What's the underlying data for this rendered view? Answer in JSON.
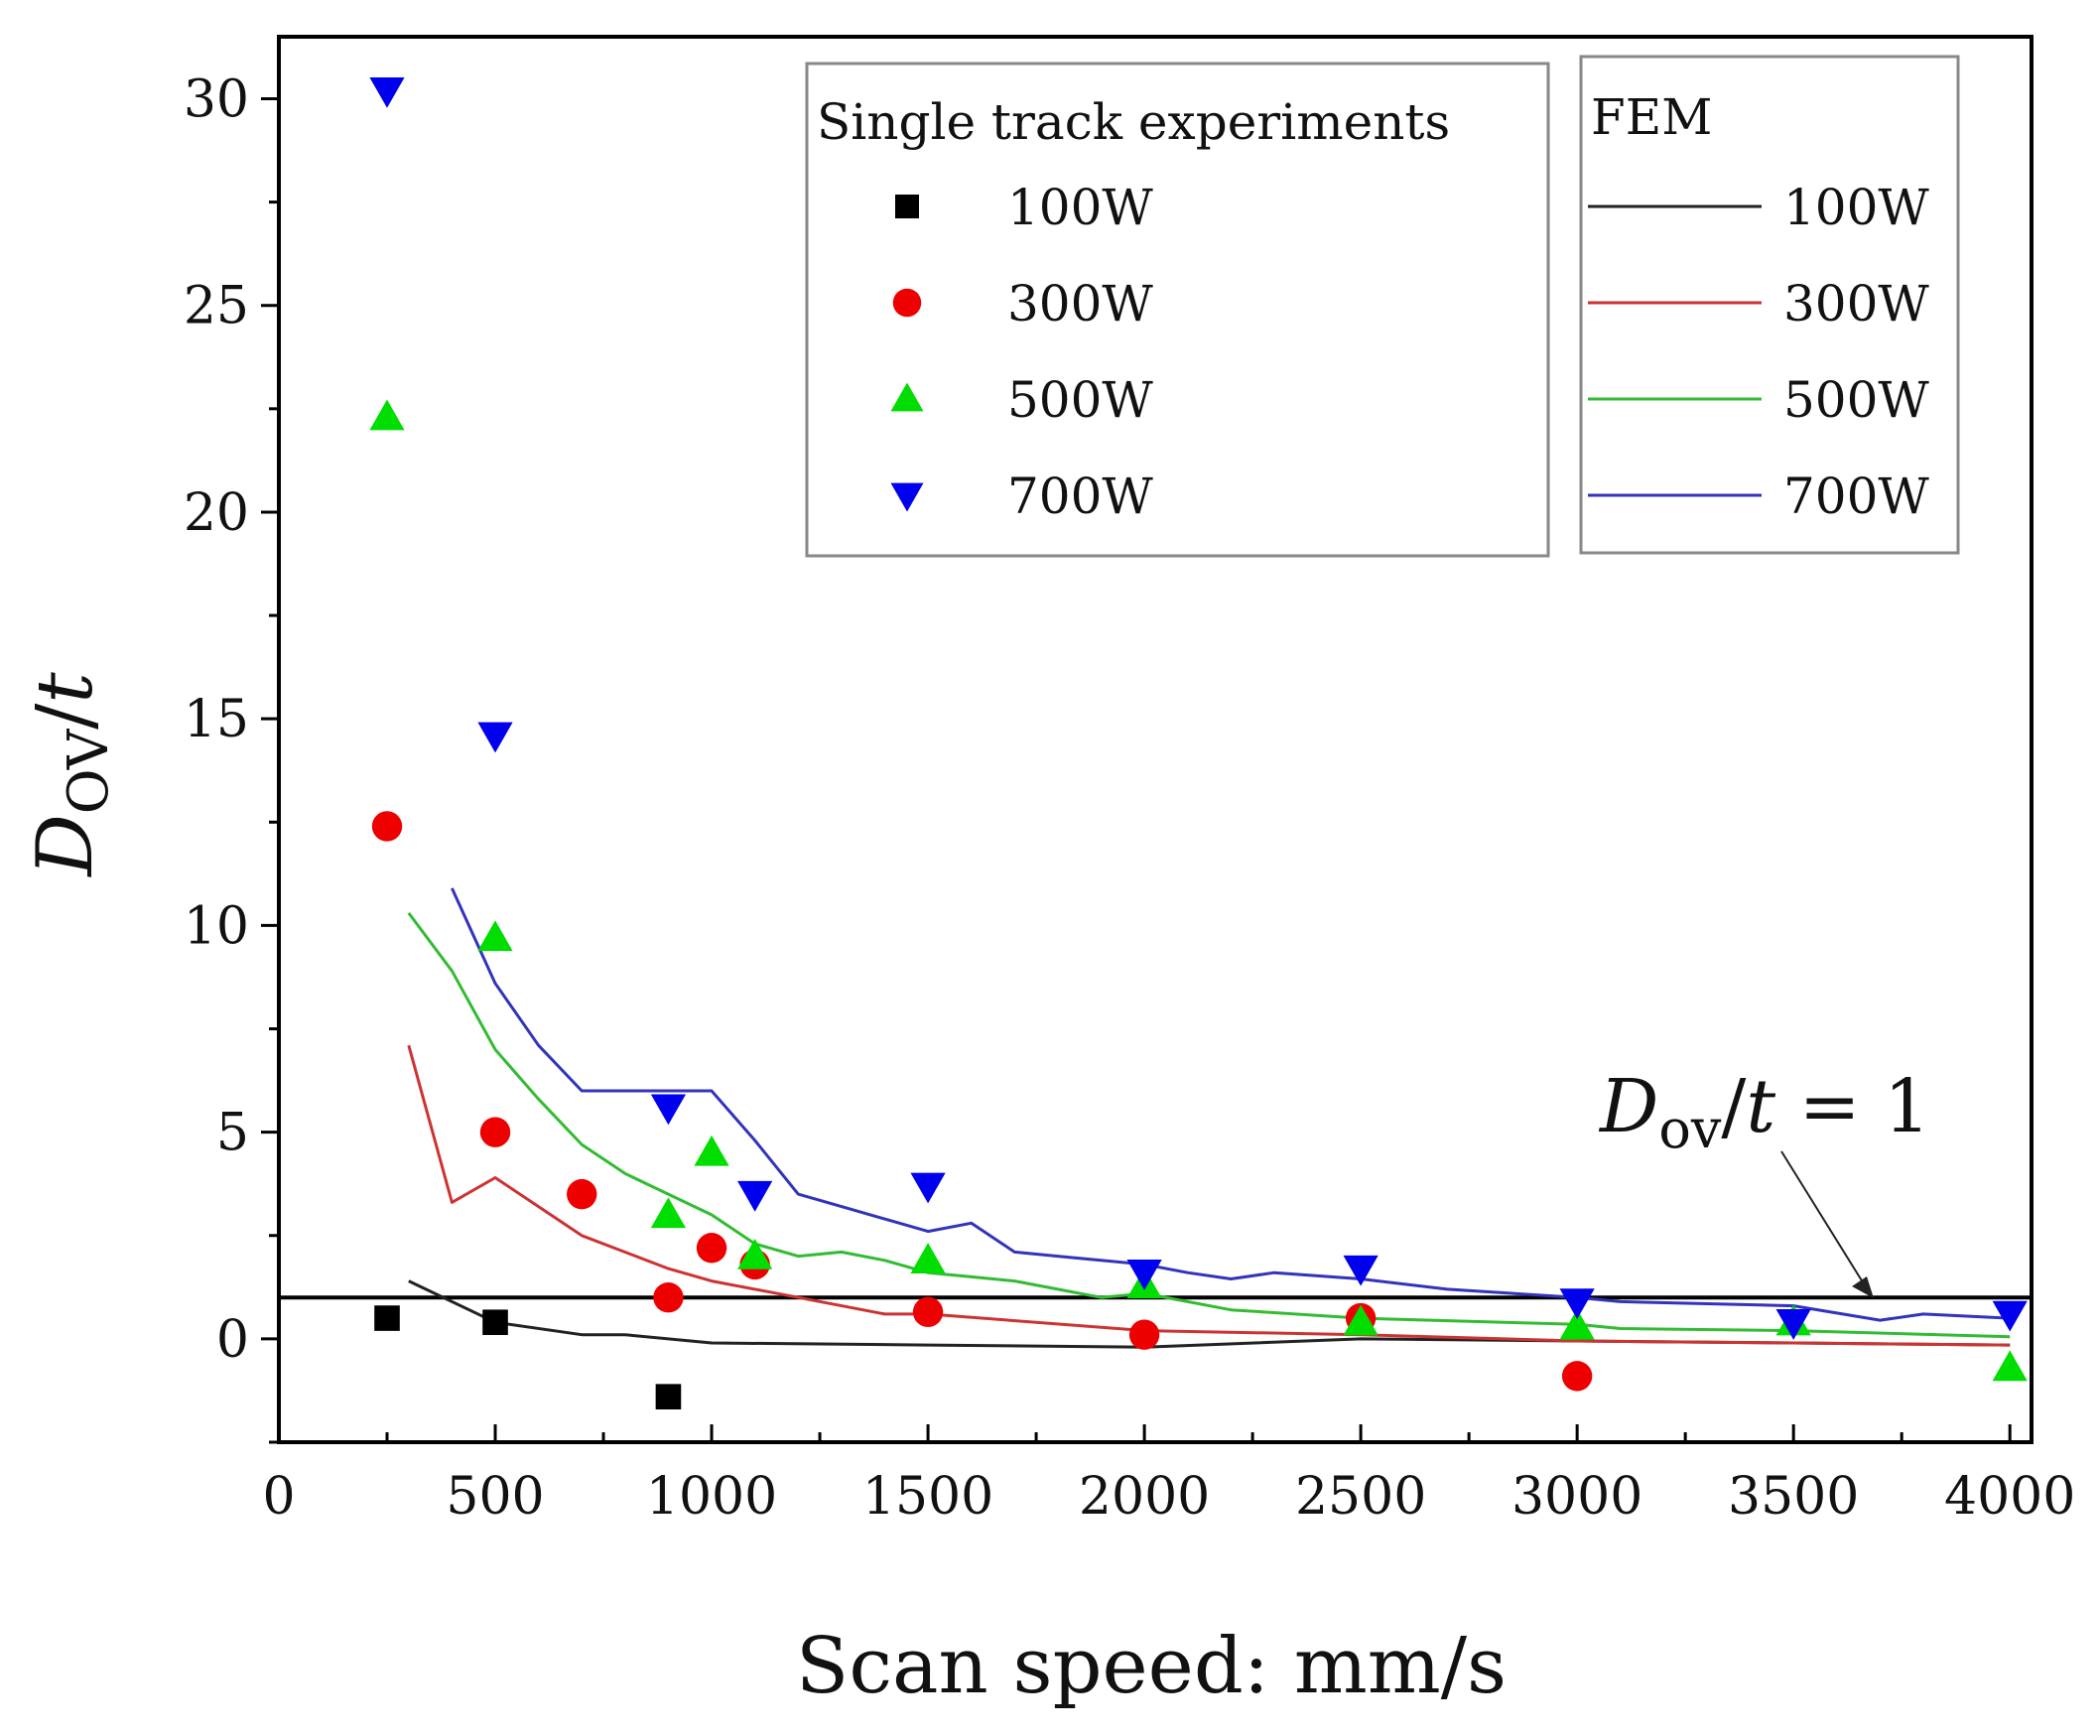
{
  "chart_data": {
    "type": "scatter",
    "xlabel": "Scan speed: mm/s",
    "ylabel": {
      "main": "D",
      "sub": "OV",
      "suffix": "/",
      "italic_tail": "t"
    },
    "xlim": [
      0,
      4050
    ],
    "ylim": [
      -2.5,
      31.5
    ],
    "x_ticks": [
      0,
      500,
      1000,
      1500,
      2000,
      2500,
      3000,
      3500,
      4000
    ],
    "x_tick_labels": [
      "0",
      "500",
      "1000",
      "1500",
      "2000",
      "2500",
      "3000",
      "3500",
      "4000"
    ],
    "y_ticks": [
      0,
      5,
      10,
      15,
      20,
      25,
      30
    ],
    "y_tick_labels": [
      "0",
      "5",
      "10",
      "15",
      "20",
      "25",
      "30"
    ],
    "reference_line": {
      "y": 1,
      "label_main": "D",
      "label_sub": "ov",
      "label_slash": "/",
      "label_t": "t",
      "label_rest": " = 1",
      "color": "#000000"
    },
    "experiment_legend_title": "Single track experiments",
    "fem_legend_title": "FEM",
    "experiments": [
      {
        "name": "100W",
        "marker": "square",
        "color": "#000000",
        "x": [
          250,
          500,
          900
        ],
        "y": [
          0.5,
          0.4,
          -1.4
        ]
      },
      {
        "name": "300W",
        "marker": "circle",
        "color": "#ee0000",
        "x": [
          250,
          500,
          700,
          900,
          1000,
          1100,
          1500,
          2000,
          2500,
          3000
        ],
        "y": [
          12.4,
          5.0,
          3.5,
          1.0,
          2.2,
          1.8,
          0.65,
          0.1,
          0.5,
          -0.9
        ]
      },
      {
        "name": "500W",
        "marker": "triangle-up",
        "color": "#00dd00",
        "x": [
          250,
          500,
          900,
          1000,
          1100,
          1500,
          2000,
          2500,
          3000,
          3500,
          4000
        ],
        "y": [
          22.3,
          9.7,
          3.0,
          4.5,
          2.0,
          1.9,
          1.3,
          0.4,
          0.3,
          0.4,
          -0.7
        ]
      },
      {
        "name": "700W",
        "marker": "triangle-down",
        "color": "#0000ee",
        "x": [
          250,
          500,
          900,
          1100,
          1500,
          2000,
          2500,
          3000,
          3500,
          4000
        ],
        "y": [
          30.2,
          14.6,
          5.6,
          3.5,
          3.7,
          1.6,
          1.7,
          0.9,
          0.4,
          0.6
        ]
      }
    ],
    "fem": [
      {
        "name": "100W",
        "color": "#222222",
        "x": [
          300,
          500,
          700,
          800,
          1000,
          1500,
          2000,
          2500,
          3000,
          3500,
          4000
        ],
        "y": [
          1.4,
          0.4,
          0.1,
          0.1,
          -0.1,
          -0.15,
          -0.2,
          0.0,
          -0.05,
          -0.1,
          -0.15
        ]
      },
      {
        "name": "300W",
        "color": "#cc3333",
        "x": [
          300,
          400,
          500,
          600,
          700,
          900,
          1000,
          1200,
          1400,
          1500,
          2000,
          2500,
          3000,
          3500,
          4000
        ],
        "y": [
          7.1,
          3.3,
          3.9,
          3.2,
          2.5,
          1.7,
          1.4,
          1.0,
          0.6,
          0.6,
          0.2,
          0.1,
          -0.05,
          -0.1,
          -0.15
        ]
      },
      {
        "name": "500W",
        "color": "#33bb33",
        "x": [
          300,
          400,
          500,
          600,
          700,
          800,
          900,
          1000,
          1100,
          1200,
          1300,
          1400,
          1500,
          1600,
          1700,
          1800,
          1900,
          2000,
          2200,
          2500,
          3000,
          3100,
          3500,
          4000
        ],
        "y": [
          10.3,
          8.9,
          7.0,
          5.8,
          4.7,
          4.0,
          3.5,
          3.0,
          2.3,
          2.0,
          2.1,
          1.9,
          1.6,
          1.5,
          1.4,
          1.2,
          1.0,
          1.1,
          0.7,
          0.5,
          0.35,
          0.25,
          0.2,
          0.05
        ]
      },
      {
        "name": "700W",
        "color": "#3333bb",
        "x": [
          400,
          500,
          600,
          700,
          800,
          900,
          1000,
          1100,
          1200,
          1300,
          1400,
          1500,
          1600,
          1700,
          1800,
          1900,
          2000,
          2100,
          2200,
          2300,
          2500,
          2700,
          3000,
          3100,
          3500,
          3700,
          3800,
          4000
        ],
        "y": [
          10.9,
          8.6,
          7.1,
          6.0,
          6.0,
          6.0,
          6.0,
          4.8,
          3.5,
          3.2,
          2.9,
          2.6,
          2.8,
          2.1,
          2.0,
          1.9,
          1.8,
          1.6,
          1.45,
          1.6,
          1.45,
          1.2,
          1.0,
          0.9,
          0.8,
          0.45,
          0.6,
          0.5
        ]
      }
    ]
  }
}
